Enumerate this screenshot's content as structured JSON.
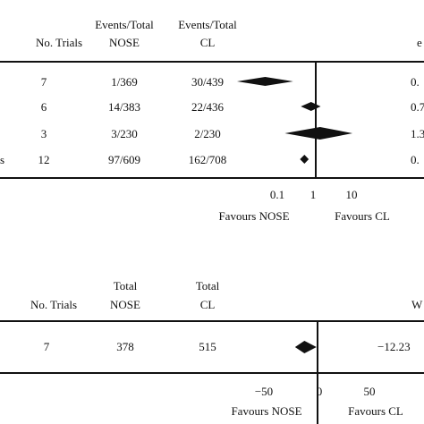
{
  "chart_data": [
    {
      "type": "forest",
      "scale": "log",
      "headers": {
        "trials": "No. Trials",
        "nose_top": "Events/Total",
        "nose_bottom": "NOSE",
        "cl_top": "Events/Total",
        "cl_bottom": "CL",
        "right_col": "e"
      },
      "rows": [
        {
          "label": "",
          "trials": "7",
          "nose": "1/369",
          "cl": "30/439",
          "estimate": 0.045,
          "ci_low": 0.008,
          "ci_high": 0.25,
          "right": "0."
        },
        {
          "label": "",
          "trials": "6",
          "nose": "14/383",
          "cl": "22/436",
          "estimate": 0.75,
          "ci_low": 0.4,
          "ci_high": 1.35,
          "right": "0.7"
        },
        {
          "label": "",
          "trials": "3",
          "nose": "3/230",
          "cl": "2/230",
          "estimate": 1.3,
          "ci_low": 0.15,
          "ci_high": 9.5,
          "right": "1.3"
        },
        {
          "label": "s",
          "trials": "12",
          "nose": "97/609",
          "cl": "162/708",
          "estimate": 0.5,
          "ci_low": 0.38,
          "ci_high": 0.65,
          "right": "0."
        }
      ],
      "x_ticks": [
        "0.1",
        "1",
        "10"
      ],
      "x_tick_values": [
        0.1,
        1,
        10
      ],
      "reference": 1,
      "favours_left": "Favours NOSE",
      "favours_right": "Favours CL"
    },
    {
      "type": "forest",
      "scale": "linear",
      "headers": {
        "trials": "No. Trials",
        "nose_top": "Total",
        "nose_bottom": "NOSE",
        "cl_top": "Total",
        "cl_bottom": "CL",
        "right_col": "W"
      },
      "rows": [
        {
          "label": "",
          "trials": "7",
          "nose": "378",
          "cl": "515",
          "estimate": -12.23,
          "ci_low": -21,
          "ci_high": -1,
          "right": "−12.23"
        }
      ],
      "x_ticks": [
        "−50",
        "0",
        "50"
      ],
      "x_tick_values": [
        -50,
        0,
        50
      ],
      "reference": 0,
      "favours_left": "Favours NOSE",
      "favours_right": "Favours CL"
    }
  ]
}
